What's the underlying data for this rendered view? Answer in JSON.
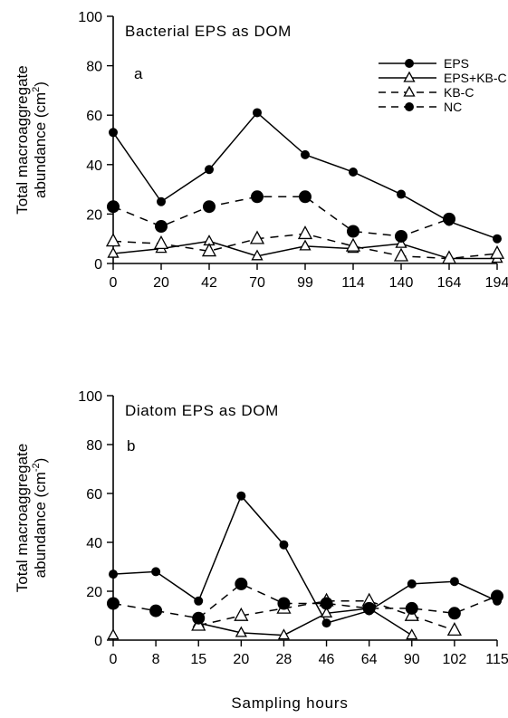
{
  "figure": {
    "xlabel": "Sampling hours"
  },
  "chart_data": [
    {
      "type": "line",
      "panel_letter": "a",
      "title": "Bacterial EPS as DOM",
      "ylabel_line1": "Total macroaggregate",
      "ylabel_line2": "abundance (cm",
      "ylabel_sup": "2",
      "ylabel_close": ")",
      "ylim": [
        0,
        100
      ],
      "yticks": [
        0,
        20,
        40,
        60,
        80,
        100
      ],
      "categories": [
        "0",
        "20",
        "42",
        "70",
        "99",
        "114",
        "140",
        "164",
        "194"
      ],
      "legend_position": "top-right",
      "series": [
        {
          "name": "EPS",
          "line": "solid",
          "marker": "filled-circle",
          "marker_size": "small",
          "values": [
            53,
            25,
            38,
            61,
            44,
            37,
            28,
            17,
            10
          ]
        },
        {
          "name": "EPS+KB-C",
          "line": "solid",
          "marker": "open-triangle",
          "marker_size": "small",
          "values": [
            4,
            6,
            9,
            3,
            7,
            6,
            8,
            2,
            2
          ]
        },
        {
          "name": "KB-C",
          "line": "dashed",
          "marker": "open-triangle",
          "marker_size": "large",
          "values": [
            9,
            8,
            5,
            10,
            12,
            7,
            3,
            2,
            4
          ]
        },
        {
          "name": "NC",
          "line": "dashed",
          "marker": "filled-circle",
          "marker_size": "large",
          "values": [
            23,
            15,
            23,
            27,
            27,
            13,
            11,
            18,
            null
          ]
        }
      ]
    },
    {
      "type": "line",
      "panel_letter": "b",
      "title": "Diatom EPS as DOM",
      "ylabel_line1": "Total macroaggregate",
      "ylabel_line2": "abundance (cm",
      "ylabel_sup": "-2",
      "ylabel_close": ")",
      "ylim": [
        0,
        100
      ],
      "yticks": [
        0,
        20,
        40,
        60,
        80,
        100
      ],
      "categories": [
        "0",
        "8",
        "15",
        "20",
        "28",
        "46",
        "64",
        "90",
        "102",
        "115"
      ],
      "series": [
        {
          "name": "EPS",
          "line": "solid",
          "marker": "filled-circle",
          "marker_size": "small",
          "values": [
            27,
            28,
            16,
            59,
            39,
            7,
            12,
            23,
            24,
            16
          ]
        },
        {
          "name": "EPS+KB-C",
          "line": "solid",
          "marker": "open-triangle",
          "marker_size": "small",
          "values": [
            2,
            null,
            7,
            3,
            2,
            11,
            13,
            2,
            null,
            null
          ]
        },
        {
          "name": "KB-C",
          "line": "dashed",
          "marker": "open-triangle",
          "marker_size": "large",
          "values": [
            null,
            null,
            6,
            10,
            13,
            16,
            16,
            10,
            4,
            null
          ]
        },
        {
          "name": "NC",
          "line": "dashed",
          "marker": "filled-circle",
          "marker_size": "large",
          "values": [
            15,
            12,
            9,
            23,
            15,
            15,
            13,
            13,
            11,
            18
          ]
        }
      ]
    }
  ]
}
